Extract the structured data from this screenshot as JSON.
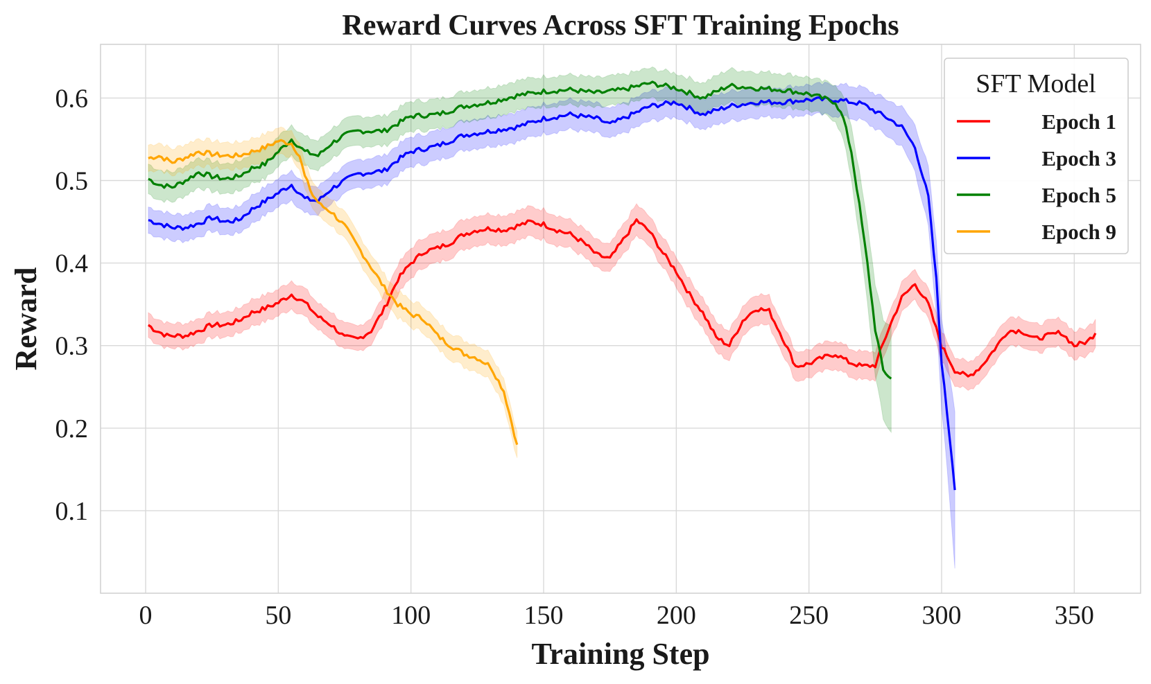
{
  "chart_data": {
    "type": "line",
    "title": "Reward Curves Across SFT Training Epochs",
    "xlabel": "Training Step",
    "ylabel": "Reward",
    "xlim": [
      -17,
      375
    ],
    "ylim": [
      0.0,
      0.665
    ],
    "xticks": [
      0,
      50,
      100,
      150,
      200,
      250,
      300,
      350
    ],
    "xtick_labels": [
      "0",
      "50",
      "100",
      "150",
      "200",
      "250",
      "300",
      "350"
    ],
    "yticks": [
      0.1,
      0.2,
      0.3,
      0.4,
      0.5,
      0.6
    ],
    "ytick_labels": [
      "0.1",
      "0.2",
      "0.3",
      "0.4",
      "0.5",
      "0.6"
    ],
    "grid": true,
    "legend": {
      "title": "SFT Model",
      "position": "top-right"
    },
    "series": [
      {
        "name": "Epoch 1",
        "color": "#ff0000",
        "x": [
          1,
          3,
          8,
          15,
          20,
          25,
          30,
          35,
          40,
          45,
          50,
          55,
          60,
          65,
          70,
          75,
          80,
          85,
          90,
          95,
          100,
          105,
          110,
          115,
          120,
          125,
          130,
          135,
          140,
          145,
          150,
          155,
          160,
          165,
          170,
          175,
          180,
          185,
          190,
          195,
          200,
          205,
          210,
          215,
          220,
          225,
          230,
          235,
          240,
          245,
          250,
          255,
          260,
          265,
          270,
          275,
          280,
          285,
          290,
          295,
          300,
          305,
          310,
          315,
          320,
          325,
          330,
          335,
          340,
          345,
          350,
          355,
          358
        ],
        "y": [
          0.325,
          0.32,
          0.312,
          0.312,
          0.318,
          0.325,
          0.325,
          0.33,
          0.34,
          0.345,
          0.352,
          0.362,
          0.352,
          0.335,
          0.325,
          0.31,
          0.308,
          0.318,
          0.345,
          0.38,
          0.4,
          0.414,
          0.418,
          0.425,
          0.435,
          0.44,
          0.442,
          0.44,
          0.445,
          0.45,
          0.447,
          0.44,
          0.435,
          0.425,
          0.41,
          0.405,
          0.428,
          0.452,
          0.438,
          0.412,
          0.39,
          0.362,
          0.34,
          0.31,
          0.3,
          0.33,
          0.345,
          0.342,
          0.31,
          0.275,
          0.278,
          0.285,
          0.29,
          0.28,
          0.275,
          0.276,
          0.32,
          0.358,
          0.375,
          0.35,
          0.3,
          0.27,
          0.262,
          0.275,
          0.296,
          0.318,
          0.318,
          0.308,
          0.312,
          0.316,
          0.3,
          0.305,
          0.315
        ],
        "band": [
          0.015,
          0.015,
          0.015,
          0.015,
          0.015,
          0.015,
          0.015,
          0.015,
          0.016,
          0.016,
          0.016,
          0.017,
          0.017,
          0.016,
          0.016,
          0.016,
          0.015,
          0.016,
          0.017,
          0.018,
          0.018,
          0.018,
          0.018,
          0.018,
          0.018,
          0.018,
          0.018,
          0.018,
          0.018,
          0.018,
          0.018,
          0.018,
          0.017,
          0.017,
          0.017,
          0.017,
          0.018,
          0.019,
          0.018,
          0.018,
          0.018,
          0.018,
          0.018,
          0.018,
          0.018,
          0.018,
          0.018,
          0.018,
          0.018,
          0.018,
          0.017,
          0.017,
          0.017,
          0.017,
          0.017,
          0.017,
          0.018,
          0.018,
          0.018,
          0.018,
          0.018,
          0.017,
          0.017,
          0.017,
          0.017,
          0.017,
          0.017,
          0.017,
          0.017,
          0.017,
          0.017,
          0.017,
          0.017
        ]
      },
      {
        "name": "Epoch 3",
        "color": "#0000ff",
        "x": [
          1,
          5,
          10,
          15,
          20,
          25,
          30,
          35,
          40,
          45,
          50,
          55,
          60,
          65,
          70,
          75,
          80,
          85,
          90,
          95,
          100,
          110,
          120,
          130,
          140,
          150,
          160,
          170,
          175,
          180,
          190,
          200,
          210,
          220,
          230,
          240,
          250,
          260,
          270,
          280,
          285,
          290,
          295,
          298,
          300,
          302,
          304,
          305
        ],
        "y": [
          0.452,
          0.448,
          0.443,
          0.443,
          0.448,
          0.455,
          0.45,
          0.452,
          0.465,
          0.475,
          0.485,
          0.495,
          0.478,
          0.475,
          0.49,
          0.5,
          0.508,
          0.51,
          0.512,
          0.525,
          0.535,
          0.542,
          0.555,
          0.56,
          0.565,
          0.575,
          0.58,
          0.575,
          0.568,
          0.575,
          0.59,
          0.595,
          0.58,
          0.59,
          0.595,
          0.595,
          0.598,
          0.598,
          0.593,
          0.575,
          0.565,
          0.54,
          0.48,
          0.38,
          0.28,
          0.22,
          0.16,
          0.125
        ],
        "band": [
          0.016,
          0.016,
          0.016,
          0.016,
          0.016,
          0.016,
          0.016,
          0.016,
          0.017,
          0.017,
          0.017,
          0.018,
          0.018,
          0.017,
          0.017,
          0.017,
          0.017,
          0.018,
          0.018,
          0.018,
          0.018,
          0.018,
          0.018,
          0.018,
          0.018,
          0.018,
          0.018,
          0.018,
          0.018,
          0.018,
          0.018,
          0.018,
          0.018,
          0.018,
          0.018,
          0.018,
          0.018,
          0.019,
          0.02,
          0.022,
          0.024,
          0.028,
          0.036,
          0.045,
          0.055,
          0.065,
          0.085,
          0.095
        ]
      },
      {
        "name": "Epoch 5",
        "color": "#008000",
        "x": [
          1,
          5,
          10,
          15,
          20,
          25,
          30,
          35,
          40,
          45,
          50,
          55,
          60,
          65,
          70,
          75,
          80,
          90,
          100,
          110,
          120,
          130,
          140,
          150,
          160,
          170,
          180,
          190,
          200,
          210,
          220,
          230,
          240,
          250,
          255,
          260,
          263,
          266,
          269,
          272,
          275,
          278,
          281
        ],
        "y": [
          0.502,
          0.495,
          0.492,
          0.5,
          0.51,
          0.505,
          0.502,
          0.505,
          0.515,
          0.52,
          0.535,
          0.55,
          0.535,
          0.53,
          0.545,
          0.555,
          0.56,
          0.56,
          0.578,
          0.58,
          0.59,
          0.595,
          0.603,
          0.608,
          0.61,
          0.606,
          0.61,
          0.618,
          0.612,
          0.6,
          0.615,
          0.612,
          0.61,
          0.605,
          0.6,
          0.595,
          0.575,
          0.535,
          0.47,
          0.4,
          0.32,
          0.27,
          0.26
        ],
        "band": [
          0.018,
          0.018,
          0.018,
          0.018,
          0.018,
          0.018,
          0.018,
          0.018,
          0.018,
          0.018,
          0.018,
          0.018,
          0.018,
          0.018,
          0.018,
          0.018,
          0.018,
          0.018,
          0.018,
          0.018,
          0.018,
          0.018,
          0.018,
          0.018,
          0.018,
          0.018,
          0.018,
          0.018,
          0.018,
          0.018,
          0.02,
          0.02,
          0.02,
          0.02,
          0.02,
          0.022,
          0.026,
          0.032,
          0.04,
          0.048,
          0.055,
          0.06,
          0.065
        ]
      },
      {
        "name": "Epoch 9",
        "color": "#ffa500",
        "x": [
          1,
          5,
          10,
          15,
          20,
          25,
          30,
          35,
          40,
          45,
          50,
          55,
          58,
          60,
          63,
          66,
          70,
          75,
          80,
          85,
          90,
          95,
          100,
          105,
          110,
          115,
          120,
          125,
          130,
          135,
          140
        ],
        "y": [
          0.527,
          0.53,
          0.522,
          0.528,
          0.535,
          0.532,
          0.53,
          0.53,
          0.535,
          0.54,
          0.548,
          0.545,
          0.53,
          0.505,
          0.482,
          0.47,
          0.462,
          0.445,
          0.42,
          0.395,
          0.37,
          0.35,
          0.338,
          0.332,
          0.312,
          0.3,
          0.29,
          0.285,
          0.275,
          0.245,
          0.18
        ]
      }
    ]
  }
}
